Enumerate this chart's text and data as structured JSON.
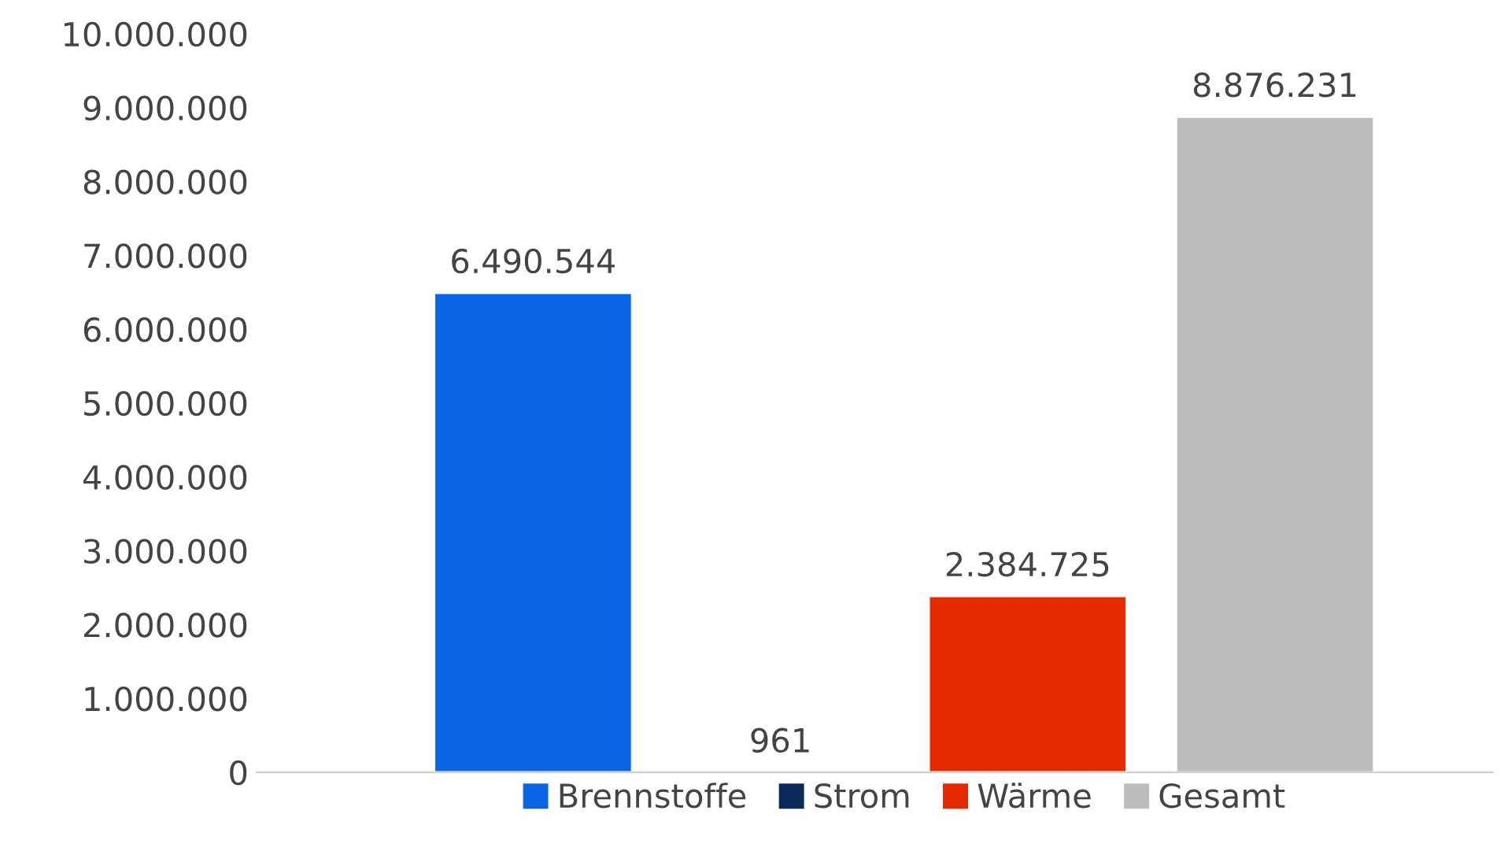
{
  "chart_data": {
    "type": "bar",
    "categories": [
      null
    ],
    "series": [
      {
        "name": "Brennstoffe",
        "color": "#0a64e6",
        "values": [
          6490544
        ],
        "value_labels": [
          "6.490.544"
        ]
      },
      {
        "name": "Strom",
        "color": "#0a2a5a",
        "values": [
          961
        ],
        "value_labels": [
          "961"
        ]
      },
      {
        "name": "Wärme",
        "color": "#e62a00",
        "values": [
          2384725
        ],
        "value_labels": [
          "2.384.725"
        ]
      },
      {
        "name": "Gesamt",
        "color": "#bdbdbd",
        "values": [
          8876231
        ],
        "value_labels": [
          "8.876.231"
        ]
      }
    ],
    "ylim": [
      0,
      10000000
    ],
    "yticks": [
      0,
      {
        "value": 1000000,
        "label": "1.000.000"
      },
      {
        "value": 2000000,
        "label": "2.000.000"
      },
      {
        "value": 3000000,
        "label": "3.000.000"
      },
      {
        "value": 4000000,
        "label": "4.000.000"
      },
      {
        "value": 5000000,
        "label": "5.000.000"
      },
      {
        "value": 6000000,
        "label": "6.000.000"
      },
      {
        "value": 7000000,
        "label": "7.000.000"
      },
      {
        "value": 8000000,
        "label": "8.000.000"
      },
      {
        "value": 9000000,
        "label": "9.000.000"
      },
      {
        "value": 10000000,
        "label": "10.000.000"
      }
    ],
    "grid": false,
    "legend": "bottom"
  }
}
